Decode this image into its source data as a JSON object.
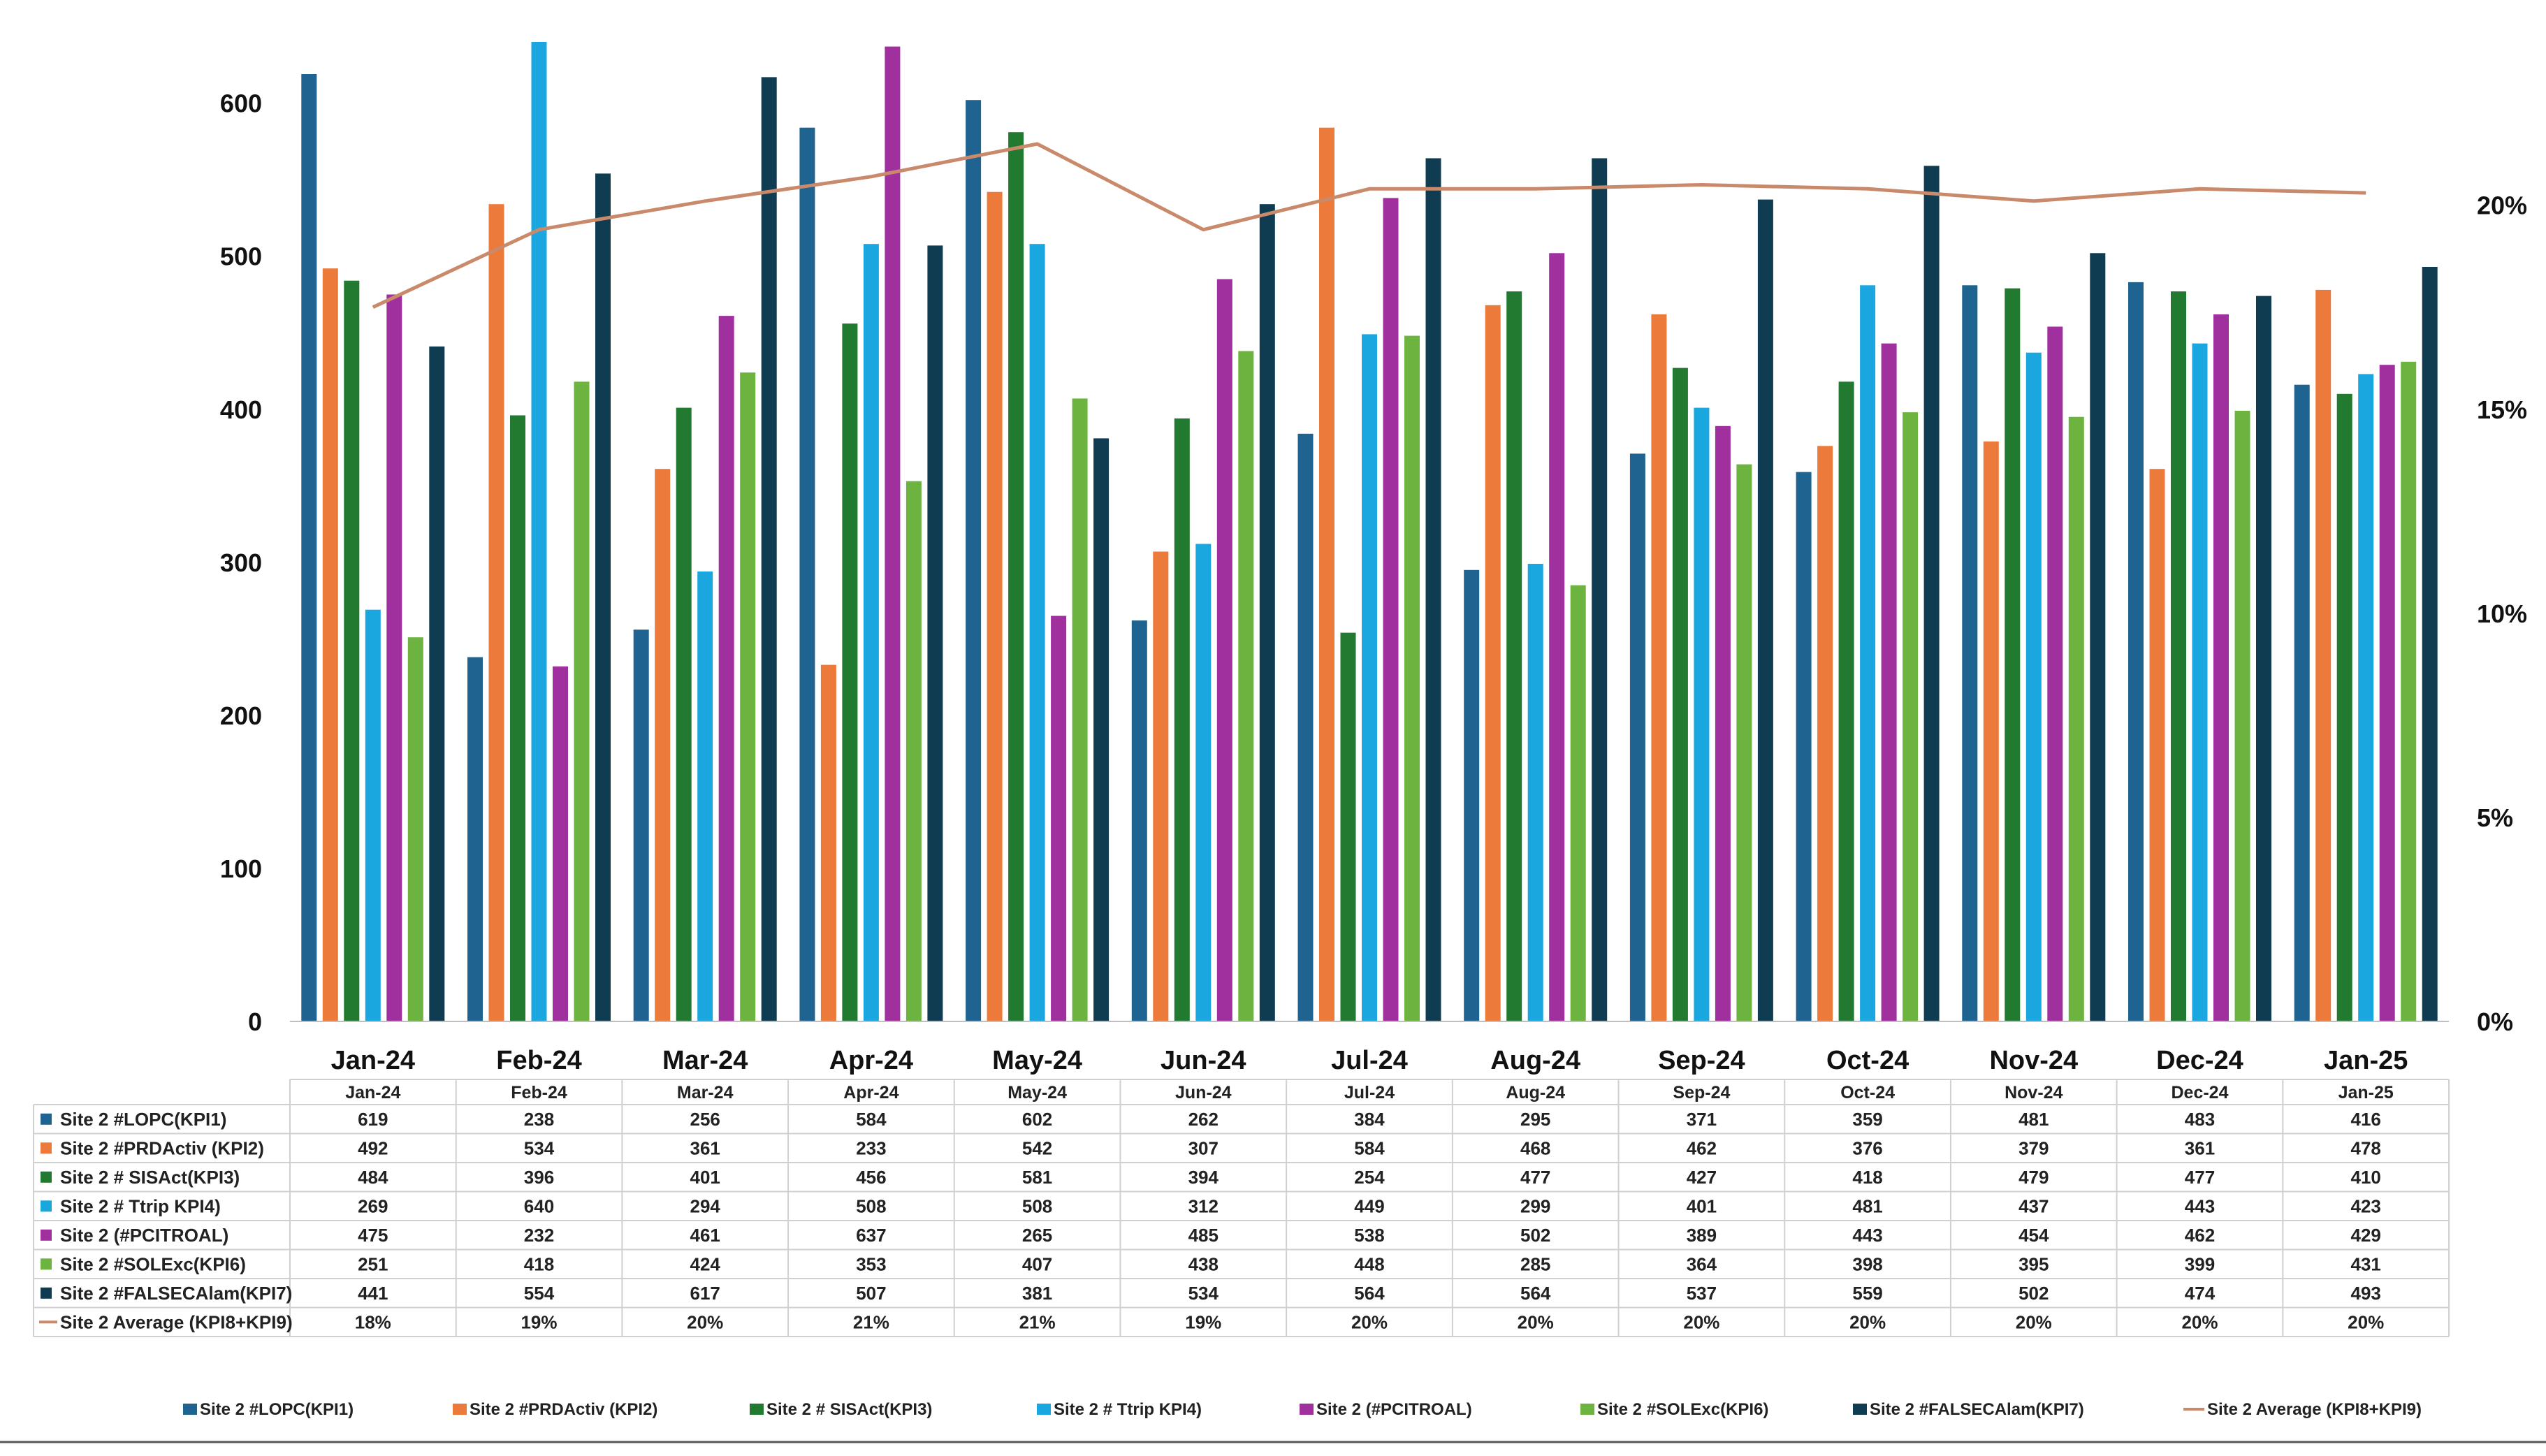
{
  "chart_data": {
    "type": "bar",
    "title": "",
    "xlabel": "",
    "ylabel": "",
    "ylim": [
      0,
      640
    ],
    "y_ticks": [
      "0",
      "100",
      "200",
      "300",
      "400",
      "500",
      "600"
    ],
    "y2lim": [
      0,
      0.24
    ],
    "y2_ticks": [
      "0%",
      "5%",
      "10%",
      "15%",
      "20%"
    ],
    "categories": [
      "Jan-24",
      "Feb-24",
      "Mar-24",
      "Apr-24",
      "May-24",
      "Jun-24",
      "Jul-24",
      "Aug-24",
      "Sep-24",
      "Oct-24",
      "Nov-24",
      "Dec-24",
      "Jan-25"
    ],
    "series": [
      {
        "name": "Site 2 #LOPC(KPI1)",
        "color": "#1f6391",
        "values": [
          619,
          238,
          256,
          584,
          602,
          262,
          384,
          295,
          371,
          359,
          481,
          483,
          416
        ]
      },
      {
        "name": "Site 2 #PRDActiv (KPI2)",
        "color": "#ec7a3a",
        "values": [
          492,
          534,
          361,
          233,
          542,
          307,
          584,
          468,
          462,
          376,
          379,
          361,
          478
        ]
      },
      {
        "name": "Site 2 # SISAct(KPI3)",
        "color": "#217a2f",
        "values": [
          484,
          396,
          401,
          456,
          581,
          394,
          254,
          477,
          427,
          418,
          479,
          477,
          410
        ]
      },
      {
        "name": "Site 2 # Ttrip KPI4)",
        "color": "#1aa7df",
        "values": [
          269,
          640,
          294,
          508,
          508,
          312,
          449,
          299,
          401,
          481,
          437,
          443,
          423
        ]
      },
      {
        "name": "Site 2 (#PCITROAL)",
        "color": "#a1309f",
        "values": [
          475,
          232,
          461,
          637,
          265,
          485,
          538,
          502,
          389,
          443,
          454,
          462,
          429
        ]
      },
      {
        "name": "Site 2 #SOLExc(KPI6)",
        "color": "#6cb33f",
        "values": [
          251,
          418,
          424,
          353,
          407,
          438,
          448,
          285,
          364,
          398,
          395,
          399,
          431
        ]
      },
      {
        "name": "Site 2 #FALSECAlam(KPI7)",
        "color": "#0f3c50",
        "values": [
          441,
          554,
          617,
          507,
          381,
          534,
          564,
          564,
          537,
          559,
          502,
          474,
          493
        ]
      }
    ],
    "line_series": {
      "name": "Site 2 Average (KPI8+KPI9)",
      "color": "#c98a6c",
      "axis": "secondary",
      "values": [
        0.175,
        0.194,
        0.201,
        0.207,
        0.215,
        0.194,
        0.204,
        0.204,
        0.205,
        0.204,
        0.201,
        0.204,
        0.203
      ],
      "labels": [
        "18%",
        "19%",
        "20%",
        "21%",
        "21%",
        "19%",
        "20%",
        "20%",
        "20%",
        "20%",
        "20%",
        "20%",
        "20%"
      ]
    },
    "legend_position": "bottom"
  }
}
